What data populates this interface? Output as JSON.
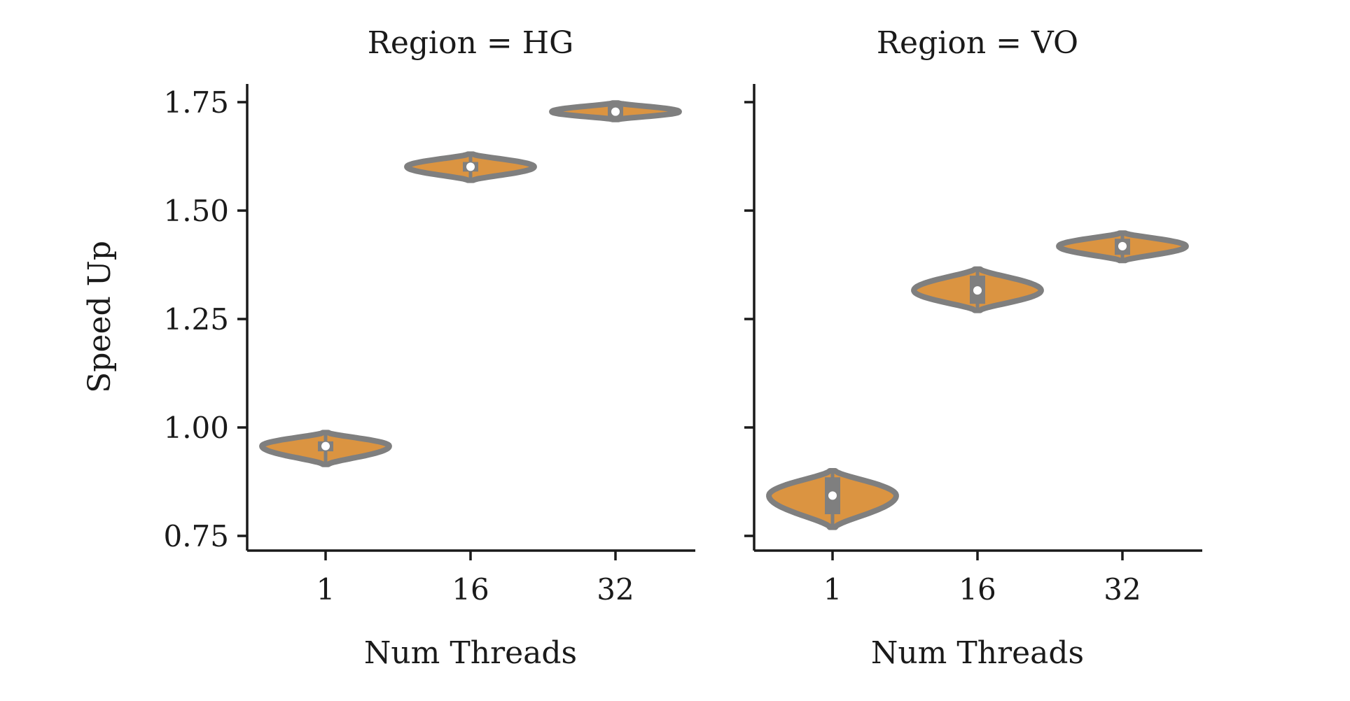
{
  "chart_data": [
    {
      "type": "violin",
      "title": "Region = HG",
      "xlabel": "Num Threads",
      "ylabel": "Speed Up",
      "categories": [
        "1",
        "16",
        "32"
      ],
      "ylim": [
        0.72,
        1.8
      ],
      "yticks": [
        0.75,
        1.0,
        1.25,
        1.5,
        1.75
      ],
      "ytick_labels": [
        "0.75",
        "1.00",
        "1.25",
        "1.50",
        "1.75"
      ],
      "show_ytick_labels": true,
      "grid": false,
      "violins": [
        {
          "category": "1",
          "median": 0.957,
          "q1": 0.945,
          "q3": 0.968,
          "min": 0.915,
          "max": 0.988,
          "half_width": 0.42
        },
        {
          "category": "16",
          "median": 1.601,
          "q1": 1.59,
          "q3": 1.612,
          "min": 1.57,
          "max": 1.63,
          "half_width": 0.42
        },
        {
          "category": "32",
          "median": 1.728,
          "q1": 1.716,
          "q3": 1.742,
          "min": 1.71,
          "max": 1.748,
          "half_width": 0.42
        }
      ]
    },
    {
      "type": "violin",
      "title": "Region = VO",
      "xlabel": "Num Threads",
      "ylabel": "",
      "categories": [
        "1",
        "16",
        "32"
      ],
      "ylim": [
        0.72,
        1.8
      ],
      "yticks": [
        0.75,
        1.0,
        1.25,
        1.5,
        1.75
      ],
      "ytick_labels": [
        "",
        "",
        "",
        "",
        ""
      ],
      "show_ytick_labels": false,
      "grid": false,
      "violins": [
        {
          "category": "1",
          "median": 0.843,
          "q1": 0.8,
          "q3": 0.885,
          "min": 0.77,
          "max": 0.9,
          "half_width": 0.42
        },
        {
          "category": "16",
          "median": 1.316,
          "q1": 1.285,
          "q3": 1.35,
          "min": 1.27,
          "max": 1.365,
          "half_width": 0.42
        },
        {
          "category": "32",
          "median": 1.418,
          "q1": 1.398,
          "q3": 1.435,
          "min": 1.385,
          "max": 1.448,
          "half_width": 0.42
        }
      ]
    }
  ],
  "colors": {
    "violin_fill": "#DB9441",
    "violin_edge": "#7F7F7F",
    "median_marker": "#FFFFFF",
    "axis": "#1A1A1A"
  }
}
